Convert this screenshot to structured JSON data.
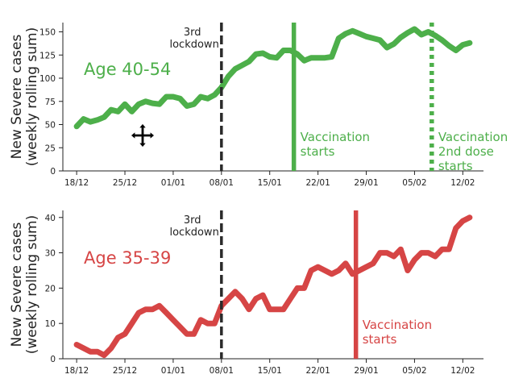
{
  "chart_data": [
    {
      "type": "line",
      "panel_label": "Age 40-54",
      "ylabel": [
        "New Severe cases",
        "(weekly rolling sum)"
      ],
      "ylim": [
        0,
        160
      ],
      "yticks": [
        0,
        25,
        50,
        75,
        100,
        125,
        150
      ],
      "x_tick_labels": [
        "18/12",
        "25/12",
        "01/01",
        "08/01",
        "15/01",
        "22/01",
        "29/01",
        "05/02",
        "12/02"
      ],
      "x_tick_days": [
        0,
        7,
        14,
        21,
        28,
        35,
        42,
        49,
        56
      ],
      "xlim": [
        -2,
        59
      ],
      "color": "#4daf4a",
      "series": [
        {
          "x": [
            0,
            1,
            2,
            3,
            4,
            5,
            6,
            7,
            8,
            9,
            10,
            11,
            12,
            13,
            14,
            15,
            16,
            17,
            18,
            19,
            20,
            21,
            22,
            23,
            24,
            25,
            26,
            27,
            28,
            29,
            30,
            31,
            32,
            33,
            34,
            35,
            36,
            37,
            38,
            39,
            40,
            41,
            42,
            43,
            44,
            45,
            46,
            47,
            48,
            49,
            50,
            51,
            52,
            53,
            54,
            55,
            56,
            57
          ],
          "values": [
            48,
            56,
            53,
            55,
            58,
            66,
            64,
            72,
            64,
            72,
            75,
            73,
            72,
            80,
            80,
            78,
            70,
            72,
            80,
            78,
            82,
            90,
            102,
            110,
            114,
            118,
            126,
            127,
            123,
            122,
            130,
            130,
            126,
            119,
            122,
            122,
            122,
            123,
            143,
            148,
            151,
            148,
            145,
            143,
            141,
            133,
            137,
            144,
            149,
            153,
            147,
            150,
            146,
            141,
            135,
            130,
            136,
            138
          ]
        }
      ],
      "vlines": [
        {
          "x": 21,
          "label": [
            "3rd",
            "lockdown"
          ],
          "style": "dashed",
          "color": "#2a2a2a"
        },
        {
          "x": 31.5,
          "label": [
            "Vaccination",
            "starts"
          ],
          "style": "solid",
          "color": "#4daf4a"
        },
        {
          "x": 51.5,
          "label": [
            "Vaccination",
            "2nd dose",
            "starts"
          ],
          "style": "dotted",
          "color": "#4daf4a"
        }
      ]
    },
    {
      "type": "line",
      "panel_label": "Age 35-39",
      "ylabel": [
        "New Severe cases",
        "(weekly rolling sum)"
      ],
      "ylim": [
        0,
        42
      ],
      "yticks": [
        0,
        10,
        20,
        30,
        40
      ],
      "x_tick_labels": [
        "18/12",
        "25/12",
        "01/01",
        "08/01",
        "15/01",
        "22/01",
        "29/01",
        "05/02",
        "12/02"
      ],
      "x_tick_days": [
        0,
        7,
        14,
        21,
        28,
        35,
        42,
        49,
        56
      ],
      "xlim": [
        -2,
        59
      ],
      "color": "#d64545",
      "series": [
        {
          "x": [
            0,
            1,
            2,
            3,
            4,
            5,
            6,
            7,
            8,
            9,
            10,
            11,
            12,
            13,
            14,
            15,
            16,
            17,
            18,
            19,
            20,
            21,
            22,
            23,
            24,
            25,
            26,
            27,
            28,
            29,
            30,
            31,
            32,
            33,
            34,
            35,
            36,
            37,
            38,
            39,
            40,
            41,
            42,
            43,
            44,
            45,
            46,
            47,
            48,
            49,
            50,
            51,
            52,
            53,
            54,
            55,
            56,
            57
          ],
          "values": [
            4,
            3,
            2,
            2,
            1,
            3,
            6,
            7,
            10,
            13,
            14,
            14,
            15,
            13,
            11,
            9,
            7,
            7,
            11,
            10,
            10,
            15,
            17,
            19,
            17,
            14,
            17,
            18,
            14,
            14,
            14,
            17,
            20,
            20,
            25,
            26,
            25,
            24,
            25,
            27,
            24,
            25,
            26,
            27,
            30,
            30,
            29,
            31,
            25,
            28,
            30,
            30,
            29,
            31,
            31,
            37,
            39,
            40
          ]
        }
      ],
      "vlines": [
        {
          "x": 21,
          "label": [
            "3rd",
            "lockdown"
          ],
          "style": "dashed",
          "color": "#2a2a2a"
        },
        {
          "x": 40.5,
          "label": [
            "Vaccination",
            "starts"
          ],
          "style": "solid",
          "color": "#d64545"
        }
      ]
    }
  ],
  "icons": {
    "cursor": "move-cursor-icon"
  }
}
